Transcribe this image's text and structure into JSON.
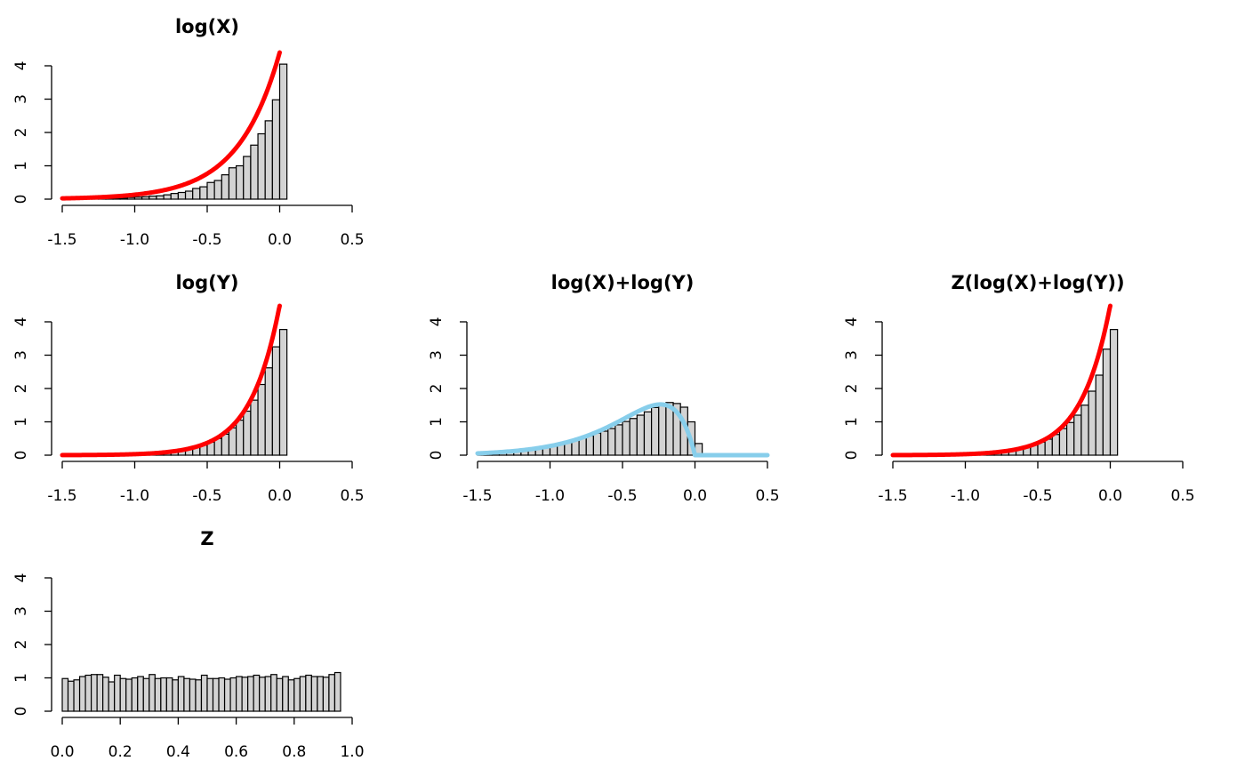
{
  "chart_data": [
    {
      "type": "bar",
      "title": "log(X)",
      "xlabel": "",
      "ylabel": "",
      "xlim": [
        -1.5,
        0.5
      ],
      "ylim": [
        0,
        4
      ],
      "x_ticks": [
        "-1.5",
        "-1.0",
        "-0.5",
        "0.0",
        "0.5"
      ],
      "y_ticks": [
        "0",
        "1",
        "2",
        "3",
        "4"
      ],
      "bin_start": -1.5,
      "bin_width": 0.05,
      "values": [
        0.0,
        0.0,
        0.0,
        0.0,
        0.01,
        0.02,
        0.02,
        0.03,
        0.03,
        0.05,
        0.06,
        0.07,
        0.09,
        0.1,
        0.13,
        0.17,
        0.2,
        0.24,
        0.32,
        0.37,
        0.5,
        0.56,
        0.73,
        0.94,
        1.0,
        1.28,
        1.62,
        1.96,
        2.35,
        2.98,
        4.05
      ],
      "density": {
        "color": "#ff0000",
        "from": -1.5,
        "to": 0.0,
        "shape": "exp",
        "rate": 3.5,
        "scale": 4.4
      }
    },
    {
      "type": "bar",
      "title": "log(Y)",
      "xlabel": "",
      "ylabel": "",
      "xlim": [
        -1.5,
        0.5
      ],
      "ylim": [
        0,
        4
      ],
      "x_ticks": [
        "-1.5",
        "-1.0",
        "-0.5",
        "0.0",
        "0.5"
      ],
      "y_ticks": [
        "0",
        "1",
        "2",
        "3",
        "4"
      ],
      "bin_start": -1.5,
      "bin_width": 0.05,
      "values": [
        0.0,
        0.0,
        0.0,
        0.0,
        0.0,
        0.0,
        0.0,
        0.01,
        0.02,
        0.02,
        0.03,
        0.04,
        0.05,
        0.07,
        0.08,
        0.11,
        0.14,
        0.18,
        0.23,
        0.3,
        0.39,
        0.5,
        0.63,
        0.82,
        1.05,
        1.32,
        1.65,
        2.12,
        2.62,
        3.25,
        3.77
      ],
      "density": {
        "color": "#ff0000",
        "from": -1.5,
        "to": 0.0,
        "shape": "exp",
        "rate": 5.0,
        "scale": 4.5
      }
    },
    {
      "type": "bar",
      "title": "log(X)+log(Y)",
      "xlabel": "",
      "ylabel": "",
      "xlim": [
        -1.5,
        0.5
      ],
      "ylim": [
        0,
        4
      ],
      "x_ticks": [
        "-1.5",
        "-1.0",
        "-0.5",
        "0.0",
        "0.5"
      ],
      "y_ticks": [
        "0",
        "1",
        "2",
        "3",
        "4"
      ],
      "bin_start": -1.5,
      "bin_width": 0.05,
      "values": [
        0.02,
        0.05,
        0.06,
        0.09,
        0.1,
        0.13,
        0.16,
        0.19,
        0.21,
        0.25,
        0.3,
        0.34,
        0.41,
        0.46,
        0.52,
        0.58,
        0.66,
        0.72,
        0.8,
        0.91,
        1.01,
        1.1,
        1.2,
        1.3,
        1.43,
        1.52,
        1.58,
        1.55,
        1.44,
        1.0,
        0.35
      ],
      "density": {
        "color": "#87ceeb",
        "from": -1.5,
        "to": 0.5,
        "shape": "hypo",
        "a": 3.5,
        "b": 5.0
      }
    },
    {
      "type": "bar",
      "title": "Z(log(X)+log(Y))",
      "xlabel": "",
      "ylabel": "",
      "xlim": [
        -1.5,
        0.5
      ],
      "ylim": [
        0,
        4
      ],
      "x_ticks": [
        "-1.5",
        "-1.0",
        "-0.5",
        "0.0",
        "0.5"
      ],
      "y_ticks": [
        "0",
        "1",
        "2",
        "3",
        "4"
      ],
      "bin_start": -1.5,
      "bin_width": 0.05,
      "values": [
        0.0,
        0.0,
        0.0,
        0.0,
        0.0,
        0.0,
        0.01,
        0.02,
        0.02,
        0.03,
        0.04,
        0.05,
        0.06,
        0.07,
        0.1,
        0.12,
        0.15,
        0.19,
        0.24,
        0.3,
        0.39,
        0.48,
        0.62,
        0.8,
        0.98,
        1.2,
        1.5,
        1.92,
        2.4,
        3.18,
        3.77
      ],
      "density": {
        "color": "#ff0000",
        "from": -1.5,
        "to": 0.0,
        "shape": "exp",
        "rate": 5.0,
        "scale": 4.5
      }
    },
    {
      "type": "bar",
      "title": "Z",
      "xlabel": "",
      "ylabel": "",
      "xlim": [
        0.0,
        1.0
      ],
      "ylim": [
        0,
        4
      ],
      "x_ticks": [
        "0.0",
        "0.2",
        "0.4",
        "0.6",
        "0.8",
        "1.0"
      ],
      "y_ticks": [
        "0",
        "1",
        "2",
        "3",
        "4"
      ],
      "bin_start": 0.0,
      "bin_width": 0.02,
      "values": [
        0.98,
        0.9,
        0.94,
        1.04,
        1.08,
        1.1,
        1.1,
        1.02,
        0.88,
        1.08,
        0.98,
        0.96,
        1.0,
        1.04,
        0.98,
        1.1,
        0.98,
        1.0,
        1.0,
        0.94,
        1.04,
        0.98,
        0.96,
        0.94,
        1.08,
        0.98,
        0.98,
        1.0,
        0.96,
        1.0,
        1.04,
        1.02,
        1.04,
        1.08,
        1.02,
        1.04,
        1.1,
        0.98,
        1.04,
        0.94,
        0.98,
        1.04,
        1.08,
        1.04,
        1.04,
        1.02,
        1.1,
        1.16
      ]
    }
  ]
}
